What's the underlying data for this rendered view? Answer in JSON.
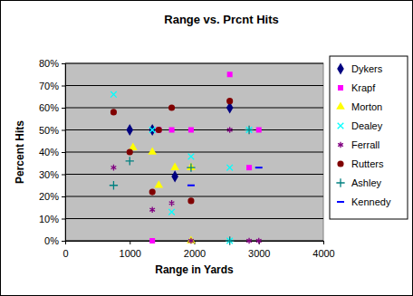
{
  "chart_data": {
    "type": "scatter",
    "title": "Range vs. Prcnt Hits",
    "x_label": "Range in Yards",
    "y_label": "Percent Hits",
    "xlim": [
      0,
      4000
    ],
    "xticks": [
      0,
      1000,
      2000,
      3000,
      4000
    ],
    "ylim": [
      0,
      80
    ],
    "yticks": [
      {
        "value": 0,
        "label": "0%"
      },
      {
        "value": 10,
        "label": "10%"
      },
      {
        "value": 20,
        "label": "20%"
      },
      {
        "value": 30,
        "label": "30%"
      },
      {
        "value": 40,
        "label": "40%"
      },
      {
        "value": 50,
        "label": "50%"
      },
      {
        "value": 60,
        "label": "60%"
      },
      {
        "value": 70,
        "label": "70%"
      },
      {
        "value": 80,
        "label": "80%"
      }
    ],
    "grid": true,
    "legend": "right",
    "series": [
      {
        "name": "Dykers",
        "color": "#000080",
        "marker": "diamond",
        "x": [
          1000,
          1350,
          1700,
          2550
        ],
        "values": [
          50,
          50,
          29,
          60
        ]
      },
      {
        "name": "Krapf",
        "color": "#ff00ff",
        "marker": "square",
        "x": [
          1350,
          1450,
          1650,
          1950,
          2550,
          2850,
          3000
        ],
        "values": [
          0,
          50,
          50,
          50,
          75,
          33,
          50
        ]
      },
      {
        "name": "Morton",
        "color": "#ffff00",
        "marker": "triangle",
        "x": [
          1050,
          1350,
          1450,
          1700,
          1950,
          1950
        ],
        "values": [
          42,
          40,
          25,
          33,
          33,
          0
        ]
      },
      {
        "name": "Dealey",
        "color": "#00ffff",
        "marker": "x",
        "x": [
          750,
          1350,
          1650,
          1950,
          2550,
          2850,
          2550
        ],
        "values": [
          66,
          50,
          13,
          38,
          33,
          50,
          0
        ]
      },
      {
        "name": "Ferrall",
        "color": "#800080",
        "marker": "asterisk",
        "x": [
          750,
          1350,
          1650,
          1950,
          2550,
          2850,
          3000
        ],
        "values": [
          33,
          14,
          17,
          0,
          50,
          0,
          0
        ]
      },
      {
        "name": "Rutters",
        "color": "#800000",
        "marker": "circle",
        "x": [
          750,
          1000,
          1350,
          1450,
          1650,
          1950,
          2550
        ],
        "values": [
          58,
          40,
          22,
          50,
          60,
          18,
          63
        ]
      },
      {
        "name": "Ashley",
        "color": "#008080",
        "marker": "plus",
        "x": [
          750,
          1000,
          1950,
          2850,
          2550
        ],
        "values": [
          25,
          36,
          33,
          50,
          0
        ]
      },
      {
        "name": "Kennedy",
        "color": "#0000ff",
        "marker": "dash",
        "x": [
          1950,
          3000
        ],
        "values": [
          25,
          33
        ]
      }
    ]
  }
}
